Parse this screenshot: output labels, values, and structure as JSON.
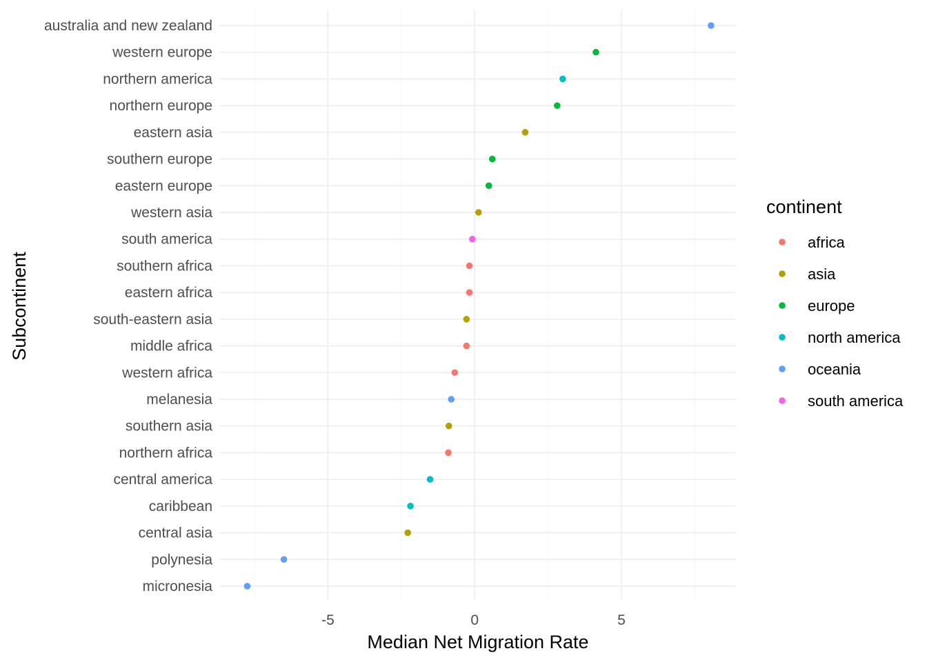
{
  "chart_data": {
    "type": "scatter",
    "title": "",
    "xlabel": "Median Net Migration Rate",
    "ylabel": "Subcontinent",
    "xlim": [
      -8.7,
      8.9
    ],
    "xticks": [
      -5,
      0,
      5
    ],
    "xtick_labels": [
      "-5",
      "0",
      "5"
    ],
    "grid": true,
    "legend": {
      "title": "continent",
      "position": "right",
      "entries": [
        {
          "name": "africa",
          "color": "#F8766D"
        },
        {
          "name": "asia",
          "color": "#B79F00"
        },
        {
          "name": "europe",
          "color": "#00BA38"
        },
        {
          "name": "north america",
          "color": "#00BFC4"
        },
        {
          "name": "oceania",
          "color": "#619CFF"
        },
        {
          "name": "south america",
          "color": "#F564E3"
        }
      ]
    },
    "points": [
      {
        "category": "australia and new zealand",
        "x": 8.05,
        "continent": "oceania"
      },
      {
        "category": "western europe",
        "x": 4.13,
        "continent": "europe"
      },
      {
        "category": "northern america",
        "x": 3.0,
        "continent": "north america"
      },
      {
        "category": "northern europe",
        "x": 2.81,
        "continent": "europe"
      },
      {
        "category": "eastern asia",
        "x": 1.72,
        "continent": "asia"
      },
      {
        "category": "southern europe",
        "x": 0.6,
        "continent": "europe"
      },
      {
        "category": "eastern europe",
        "x": 0.48,
        "continent": "europe"
      },
      {
        "category": "western asia",
        "x": 0.13,
        "continent": "asia"
      },
      {
        "category": "south america",
        "x": -0.08,
        "continent": "south america"
      },
      {
        "category": "southern africa",
        "x": -0.18,
        "continent": "africa"
      },
      {
        "category": "eastern africa",
        "x": -0.18,
        "continent": "africa"
      },
      {
        "category": "south-eastern asia",
        "x": -0.28,
        "continent": "asia"
      },
      {
        "category": "middle africa",
        "x": -0.28,
        "continent": "africa"
      },
      {
        "category": "western africa",
        "x": -0.68,
        "continent": "africa"
      },
      {
        "category": "melanesia",
        "x": -0.8,
        "continent": "oceania"
      },
      {
        "category": "southern asia",
        "x": -0.88,
        "continent": "asia"
      },
      {
        "category": "northern africa",
        "x": -0.9,
        "continent": "africa"
      },
      {
        "category": "central america",
        "x": -1.52,
        "continent": "north america"
      },
      {
        "category": "caribbean",
        "x": -2.19,
        "continent": "north america"
      },
      {
        "category": "central asia",
        "x": -2.28,
        "continent": "asia"
      },
      {
        "category": "polynesia",
        "x": -6.5,
        "continent": "oceania"
      },
      {
        "category": "micronesia",
        "x": -7.75,
        "continent": "oceania"
      }
    ]
  }
}
